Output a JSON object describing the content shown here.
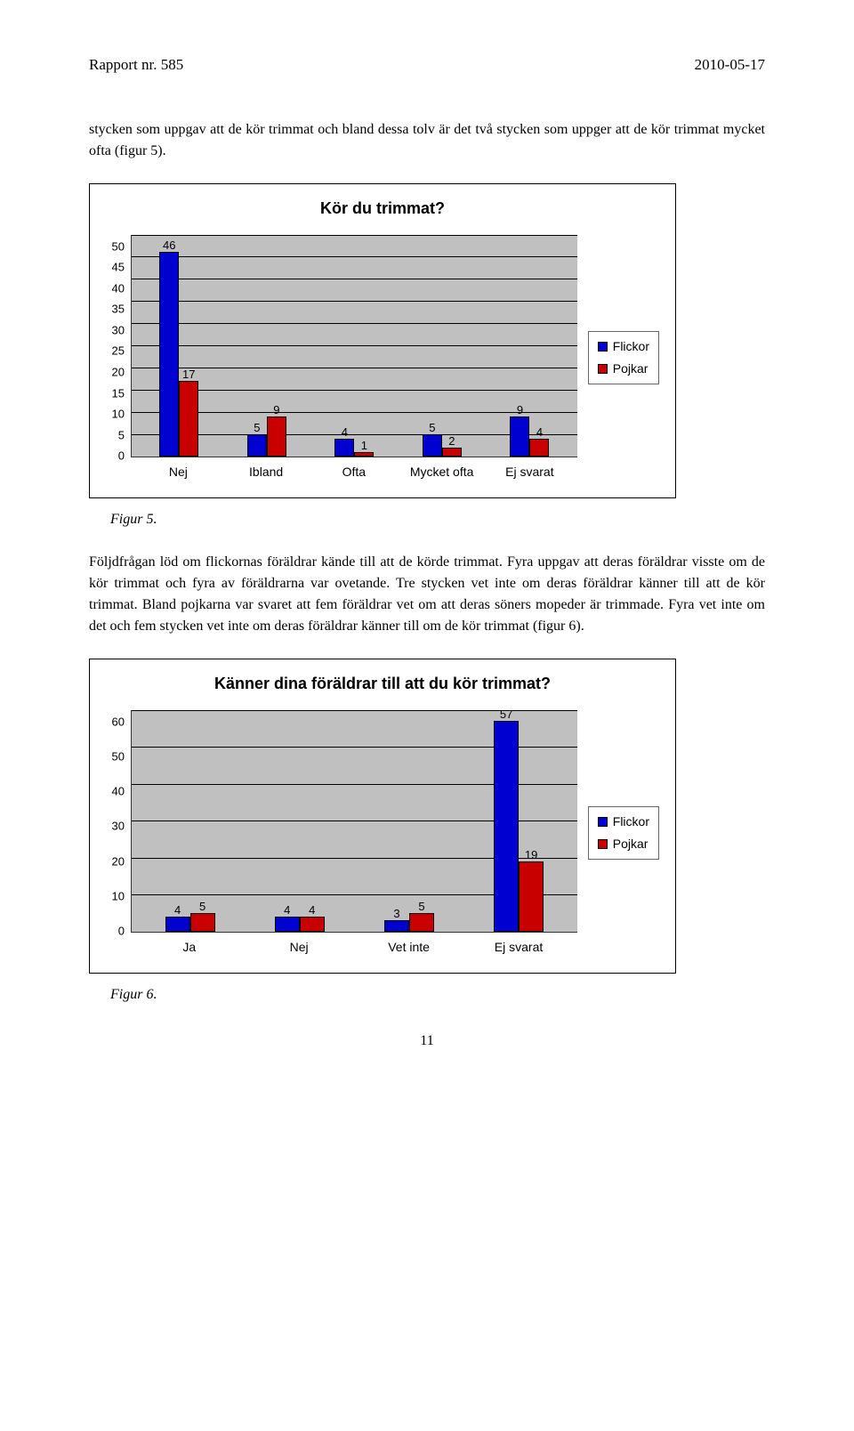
{
  "header": {
    "left": "Rapport nr. 585",
    "right": "2010-05-17"
  },
  "intro_paragraph": "stycken som uppgav att de kör trimmat och bland dessa tolv är det två stycken som uppger att de kör trimmat mycket ofta (figur 5).",
  "chart1": {
    "title": "Kör du trimmat?",
    "categories": [
      "Nej",
      "Ibland",
      "Ofta",
      "Mycket ofta",
      "Ej svarat"
    ],
    "series": [
      {
        "name": "Flickor",
        "color": "#0000d0",
        "values": [
          46,
          5,
          4,
          5,
          9
        ]
      },
      {
        "name": "Pojkar",
        "color": "#c80000",
        "values": [
          17,
          9,
          1,
          2,
          4
        ]
      }
    ],
    "ymax": 50,
    "ystep": 5,
    "plot_bg": "#c0c0c0",
    "grid_color": "#000000"
  },
  "figure5_caption": "Figur 5.",
  "mid_paragraph": "Följdfrågan löd om flickornas föräldrar kände till att de körde trimmat. Fyra uppgav att deras föräldrar visste om de kör trimmat och fyra av föräldrarna var ovetande. Tre stycken vet inte om deras föräldrar känner till att de kör trimmat. Bland pojkarna var svaret att fem föräldrar vet om att deras söners mopeder är trimmade. Fyra vet inte om det och fem stycken vet inte om deras föräldrar känner till om de kör trimmat (figur 6).",
  "chart2": {
    "title": "Känner dina föräldrar till att du kör trimmat?",
    "categories": [
      "Ja",
      "Nej",
      "Vet inte",
      "Ej svarat"
    ],
    "series": [
      {
        "name": "Flickor",
        "color": "#0000d0",
        "values": [
          4,
          4,
          3,
          57
        ]
      },
      {
        "name": "Pojkar",
        "color": "#c80000",
        "values": [
          5,
          4,
          5,
          19
        ]
      }
    ],
    "ymax": 60,
    "ystep": 10,
    "plot_bg": "#c0c0c0",
    "grid_color": "#000000"
  },
  "figure6_caption": "Figur 6.",
  "page_number": "11"
}
